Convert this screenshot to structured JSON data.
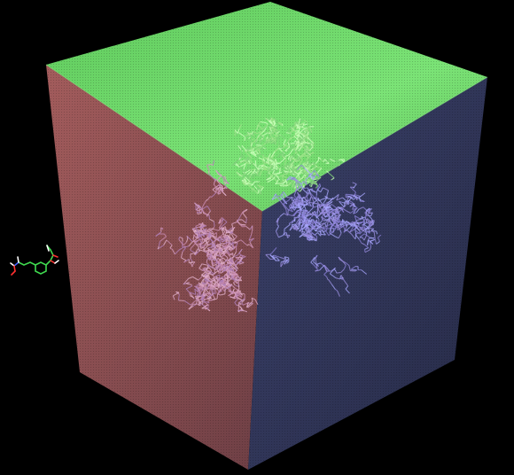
{
  "viewer": {
    "background": "#000000",
    "content_text": []
  },
  "simulation_box": {
    "shape": "cube",
    "faces": [
      {
        "name": "top-face",
        "color": "#6fd86a"
      },
      {
        "name": "left-face",
        "color": "#9a5b5b"
      },
      {
        "name": "right-face",
        "color": "#333a5e"
      }
    ],
    "edge_highlight": "#7fe37a"
  },
  "protein": {
    "representation": "stick",
    "colors": [
      "#9fe38a",
      "#c88ab0",
      "#8a7fd8",
      "#d7a0c0",
      "#a8a8ff"
    ]
  },
  "ligand": {
    "representation": "stick",
    "atom_colors": {
      "carbon": "#3fd94f",
      "oxygen": "#ff3030",
      "nitrogen": "#4060ff",
      "hydrogen": "#ffffff"
    }
  }
}
